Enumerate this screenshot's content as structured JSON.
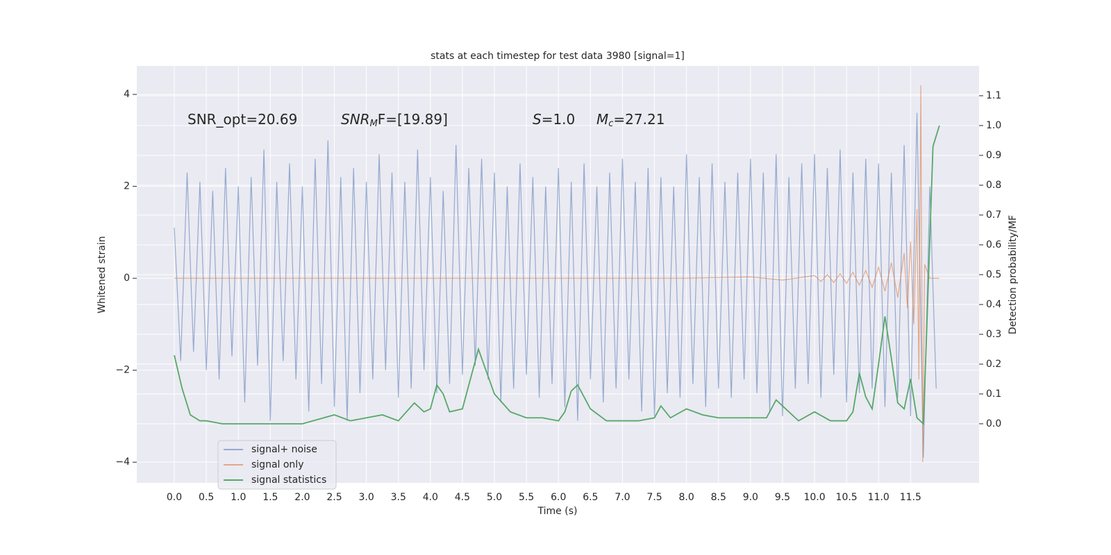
{
  "chart_data": {
    "type": "line",
    "title": "stats at each timestep for test data 3980 [signal=1]",
    "x_label": "Time (s)",
    "y_label": "Whitened strain",
    "y2_label": "Detection probability/MF",
    "annotations": [
      [
        "SNR_opt=20.69"
      ],
      [
        "SNR",
        "M",
        "F=[19.89]"
      ],
      [
        "S",
        "=1.0"
      ],
      [
        "M",
        "c",
        "=27.21"
      ]
    ],
    "xlim": [
      -0.586,
      12.57
    ],
    "ylim": [
      -4.45,
      4.62
    ],
    "y2lim": [
      -0.198,
      1.2
    ],
    "grid": true,
    "legend": "lower left",
    "xticks": [
      {
        "value": 0,
        "label": "0.0"
      },
      0.5,
      {
        "value": 1,
        "label": "1.0"
      },
      1.5,
      {
        "value": 2,
        "label": "2.0"
      },
      2.5,
      {
        "value": 3,
        "label": "3.0"
      },
      3.5,
      {
        "value": 4,
        "label": "4.0"
      },
      4.5,
      {
        "value": 5,
        "label": "5.0"
      },
      5.5,
      {
        "value": 6,
        "label": "6.0"
      },
      6.5,
      {
        "value": 7,
        "label": "7.0"
      },
      7.5,
      {
        "value": 8,
        "label": "8.0"
      },
      8.5,
      {
        "value": 9,
        "label": "9.0"
      },
      9.5,
      {
        "value": 10,
        "label": "10.0"
      },
      10.5,
      {
        "value": 11,
        "label": "11.0"
      },
      11.5
    ],
    "yticks": [
      {
        "value": -4,
        "label": "−4"
      },
      {
        "value": -2,
        "label": "−2"
      },
      0,
      2,
      4
    ],
    "y2ticks": [
      {
        "value": 0,
        "label": "0.0"
      },
      0.1,
      0.2,
      0.3,
      0.4,
      0.5,
      0.6,
      0.7,
      0.8,
      0.9,
      {
        "value": 1,
        "label": "1.0"
      },
      1.1
    ],
    "series": [
      {
        "name": "signal+ noise",
        "color": "#4c72b0",
        "x": [
          0.0,
          0.1,
          0.2,
          0.3,
          0.4,
          0.5,
          0.6,
          0.7,
          0.8,
          0.9,
          1.0,
          1.1,
          1.2,
          1.3,
          1.4,
          1.5,
          1.6,
          1.7,
          1.8,
          1.9,
          2.0,
          2.1,
          2.2,
          2.3,
          2.4,
          2.5,
          2.6,
          2.7,
          2.8,
          2.9,
          3.0,
          3.1,
          3.2,
          3.3,
          3.4,
          3.5,
          3.6,
          3.7,
          3.8,
          3.9,
          4.0,
          4.1,
          4.2,
          4.3,
          4.4,
          4.5,
          4.6,
          4.7,
          4.8,
          4.9,
          5.0,
          5.1,
          5.2,
          5.3,
          5.4,
          5.5,
          5.6,
          5.7,
          5.8,
          5.9,
          6.0,
          6.1,
          6.2,
          6.3,
          6.4,
          6.5,
          6.6,
          6.7,
          6.8,
          6.9,
          7.0,
          7.1,
          7.2,
          7.3,
          7.4,
          7.5,
          7.6,
          7.7,
          7.8,
          7.9,
          8.0,
          8.1,
          8.2,
          8.3,
          8.4,
          8.5,
          8.6,
          8.7,
          8.8,
          8.9,
          9.0,
          9.1,
          9.2,
          9.3,
          9.4,
          9.5,
          9.6,
          9.7,
          9.8,
          9.9,
          10.0,
          10.1,
          10.2,
          10.3,
          10.4,
          10.5,
          10.6,
          10.7,
          10.8,
          10.9,
          11.0,
          11.1,
          11.2,
          11.3,
          11.4,
          11.5,
          11.6,
          11.7,
          11.8,
          11.9
        ],
        "values": [
          1.1,
          -1.8,
          2.3,
          -1.6,
          2.1,
          -2.0,
          1.9,
          -2.2,
          2.4,
          -1.7,
          2.0,
          -2.7,
          2.2,
          -1.9,
          2.8,
          -3.1,
          2.1,
          -1.8,
          2.5,
          -2.2,
          2.0,
          -2.9,
          2.6,
          -2.3,
          3.0,
          -2.8,
          2.2,
          -3.1,
          2.4,
          -2.5,
          2.1,
          -2.2,
          2.7,
          -2.0,
          2.3,
          -2.6,
          2.1,
          -2.4,
          2.8,
          -2.0,
          2.2,
          -2.5,
          1.9,
          -2.3,
          2.9,
          -2.1,
          2.4,
          -1.9,
          2.6,
          -2.2,
          2.3,
          -2.7,
          2.0,
          -2.4,
          2.5,
          -2.1,
          2.2,
          -2.6,
          2.0,
          -2.3,
          2.4,
          -2.8,
          2.1,
          -3.1,
          2.5,
          -2.2,
          2.0,
          -2.7,
          2.3,
          -2.4,
          2.6,
          -2.2,
          2.1,
          -2.9,
          2.4,
          -3.0,
          2.2,
          -2.5,
          2.0,
          -2.6,
          2.7,
          -2.3,
          2.2,
          -2.8,
          2.5,
          -2.4,
          2.1,
          -2.6,
          2.3,
          -2.2,
          2.6,
          -2.5,
          2.3,
          -2.9,
          2.7,
          -3.0,
          2.2,
          -2.4,
          2.5,
          -2.3,
          2.7,
          -2.6,
          2.4,
          -2.1,
          2.8,
          -2.7,
          2.3,
          -2.5,
          2.6,
          -2.4,
          2.5,
          -2.8,
          2.3,
          -2.6,
          2.9,
          -3.0,
          3.6,
          -3.9,
          2.0,
          -2.4
        ]
      },
      {
        "name": "signal only",
        "color": "#dd8452",
        "x": [
          0,
          2,
          4,
          6,
          8,
          9.0,
          9.5,
          10.0,
          10.1,
          10.2,
          10.3,
          10.4,
          10.5,
          10.6,
          10.7,
          10.8,
          10.9,
          11.0,
          11.1,
          11.2,
          11.3,
          11.4,
          11.45,
          11.5,
          11.55,
          11.6,
          11.63,
          11.66,
          11.69,
          11.72,
          11.8,
          11.95
        ],
        "values": [
          0,
          0,
          0,
          0,
          0,
          0.03,
          -0.04,
          0.06,
          -0.07,
          0.08,
          -0.09,
          0.1,
          -0.11,
          0.13,
          -0.15,
          0.17,
          -0.2,
          0.24,
          -0.28,
          0.34,
          -0.42,
          0.55,
          -0.65,
          0.8,
          -1.0,
          1.5,
          -2.2,
          4.2,
          -4.0,
          0.3,
          0,
          0
        ]
      },
      {
        "name": "signal statistics",
        "color": "#55a868",
        "axis": "y2",
        "x": [
          0,
          0.12,
          0.25,
          0.4,
          0.5,
          0.75,
          1.0,
          1.5,
          2.0,
          2.5,
          2.75,
          3.0,
          3.25,
          3.5,
          3.75,
          3.9,
          4.0,
          4.1,
          4.2,
          4.3,
          4.5,
          4.75,
          5.0,
          5.25,
          5.5,
          5.75,
          6.0,
          6.1,
          6.2,
          6.3,
          6.5,
          6.75,
          7.0,
          7.25,
          7.5,
          7.6,
          7.75,
          8.0,
          8.25,
          8.5,
          9.0,
          9.25,
          9.4,
          9.5,
          9.75,
          10.0,
          10.25,
          10.5,
          10.6,
          10.7,
          10.8,
          10.9,
          11.0,
          11.1,
          11.2,
          11.3,
          11.4,
          11.5,
          11.6,
          11.7,
          11.75,
          11.85,
          11.95
        ],
        "values": [
          0.23,
          0.12,
          0.03,
          0.01,
          0.01,
          0.0,
          0.0,
          0.0,
          0.0,
          0.03,
          0.01,
          0.02,
          0.03,
          0.01,
          0.07,
          0.04,
          0.05,
          0.13,
          0.1,
          0.04,
          0.05,
          0.25,
          0.1,
          0.04,
          0.02,
          0.02,
          0.01,
          0.04,
          0.11,
          0.13,
          0.05,
          0.01,
          0.01,
          0.01,
          0.02,
          0.06,
          0.02,
          0.05,
          0.03,
          0.02,
          0.02,
          0.02,
          0.08,
          0.06,
          0.01,
          0.04,
          0.01,
          0.01,
          0.04,
          0.17,
          0.09,
          0.05,
          0.2,
          0.36,
          0.22,
          0.07,
          0.05,
          0.15,
          0.02,
          0.0,
          0.3,
          0.93,
          1.0
        ]
      }
    ]
  }
}
